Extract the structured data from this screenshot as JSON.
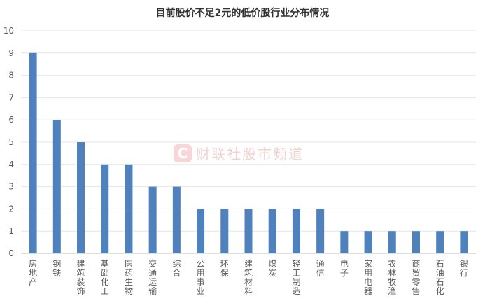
{
  "chart_data": {
    "type": "bar",
    "title": "目前股价不足2元的低价股行业分布情况",
    "categories": [
      "房地产",
      "钢铁",
      "建筑装饰",
      "基础化工",
      "医药生物",
      "交通运输",
      "综合",
      "公用事业",
      "环保",
      "建筑材料",
      "煤炭",
      "轻工制造",
      "通信",
      "电子",
      "家用电器",
      "农林牧渔",
      "商贸零售",
      "石油石化",
      "银行"
    ],
    "values": [
      9,
      6,
      5,
      4,
      4,
      3,
      3,
      2,
      2,
      2,
      2,
      2,
      2,
      1,
      1,
      1,
      1,
      1,
      1
    ],
    "ylim": [
      0,
      10
    ],
    "yticks": [
      0,
      1,
      2,
      3,
      4,
      5,
      6,
      7,
      8,
      9,
      10
    ],
    "xlabel": "",
    "ylabel": "",
    "grid": true,
    "bar_color": "#4F81BD"
  },
  "watermark": {
    "logo": "C",
    "text": "财联社股市频道"
  }
}
